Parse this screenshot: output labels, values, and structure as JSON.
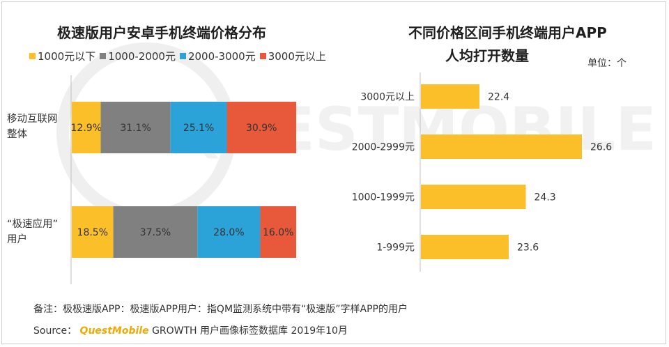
{
  "watermark": "QUESTMOBILE",
  "chart_data": [
    {
      "type": "bar",
      "orientation": "horizontal",
      "stacked": true,
      "percent": true,
      "title": "极速版用户安卓手机终端价格分布",
      "categories": [
        "移动互联网整体",
        "“极速应用”用户"
      ],
      "category_lines": [
        [
          "移动互联网",
          "整体"
        ],
        [
          "“极速应用”",
          "用户"
        ]
      ],
      "series": [
        {
          "name": "1000元以下",
          "color": "#fbbf2a",
          "values": [
            12.9,
            18.5
          ]
        },
        {
          "name": "1000-2000元",
          "color": "#808080",
          "values": [
            31.1,
            37.5
          ]
        },
        {
          "name": "2000-3000元",
          "color": "#2ba3d9",
          "values": [
            25.1,
            28.0
          ]
        },
        {
          "name": "3000元以上",
          "color": "#e8593b",
          "values": [
            30.9,
            16.0
          ]
        }
      ],
      "value_labels": [
        [
          "12.9%",
          "31.1%",
          "25.1%",
          "30.9%"
        ],
        [
          "18.5%",
          "37.5%",
          "28.0%",
          "16.0%"
        ]
      ],
      "legend_position": "top",
      "xlim": [
        0,
        100
      ],
      "grid": false
    },
    {
      "type": "bar",
      "orientation": "horizontal",
      "title_lines": [
        "不同价格区间手机终端用户APP",
        "人均打开数量"
      ],
      "unit": "单位：个",
      "categories": [
        "3000元以上",
        "2000-2999元",
        "1000-1999元",
        "1-999元"
      ],
      "values": [
        22.4,
        26.6,
        24.3,
        23.6
      ],
      "value_labels": [
        "22.4",
        "26.6",
        "24.3",
        "23.6"
      ],
      "color": "#fbbf2a",
      "xlim": [
        20,
        27.2
      ],
      "grid": false
    }
  ],
  "footer": {
    "note": "备注：极极速版APP：极速版APP用户：指QM监测系统中带有“极速版”字样APP的用户",
    "source_prefix": "Source：",
    "source_brand": "QuestMobile",
    "source_rest": "GROWTH 用户画像标签数据库 2019年10月"
  }
}
